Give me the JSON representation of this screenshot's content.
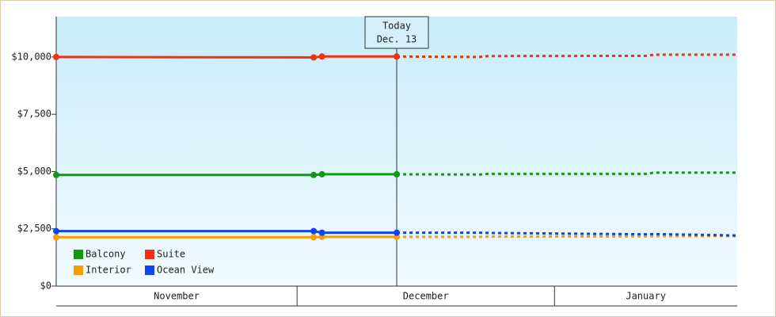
{
  "chart_data": {
    "type": "line",
    "x": [
      1,
      32,
      33,
      42,
      52,
      53,
      72,
      73,
      83
    ],
    "xlim": [
      1,
      83
    ],
    "categories": [
      "November",
      "December",
      "January"
    ],
    "category_bounds": [
      30,
      61
    ],
    "ylim": [
      0,
      11760
    ],
    "yticks": [
      {
        "value": 0,
        "label": "$0"
      },
      {
        "value": 2500,
        "label": "$2,500"
      },
      {
        "value": 5000,
        "label": "$5,000"
      },
      {
        "value": 7500,
        "label": "$7,500"
      },
      {
        "value": 10000,
        "label": "$10,000"
      }
    ],
    "today": {
      "x": 42,
      "label": "Today",
      "date": "Dec. 13"
    },
    "legend": "lower-left",
    "series": [
      {
        "name": "Balcony",
        "color": "#119911",
        "values": [
          4850,
          4850,
          4880,
          4880,
          null,
          null,
          null,
          null,
          null
        ],
        "forecast": [
          null,
          null,
          null,
          4880,
          4870,
          4900,
          4900,
          4950,
          4950
        ]
      },
      {
        "name": "Suite",
        "color": "#ee3311",
        "values": [
          10000,
          9980,
          10020,
          10020,
          null,
          null,
          null,
          null,
          null
        ],
        "forecast": [
          null,
          null,
          null,
          10020,
          10000,
          10040,
          10050,
          10100,
          10100
        ]
      },
      {
        "name": "Interior",
        "color": "#f5a000",
        "values": [
          2130,
          2130,
          2150,
          2150,
          null,
          null,
          null,
          null,
          null
        ],
        "forecast": [
          null,
          null,
          null,
          2150,
          2150,
          2160,
          2170,
          2180,
          2180
        ]
      },
      {
        "name": "Ocean View",
        "color": "#1144ee",
        "values": [
          2400,
          2400,
          2330,
          2330,
          null,
          null,
          null,
          null,
          null
        ],
        "forecast": [
          null,
          null,
          null,
          2330,
          2330,
          2320,
          2260,
          2270,
          2210
        ]
      }
    ]
  }
}
